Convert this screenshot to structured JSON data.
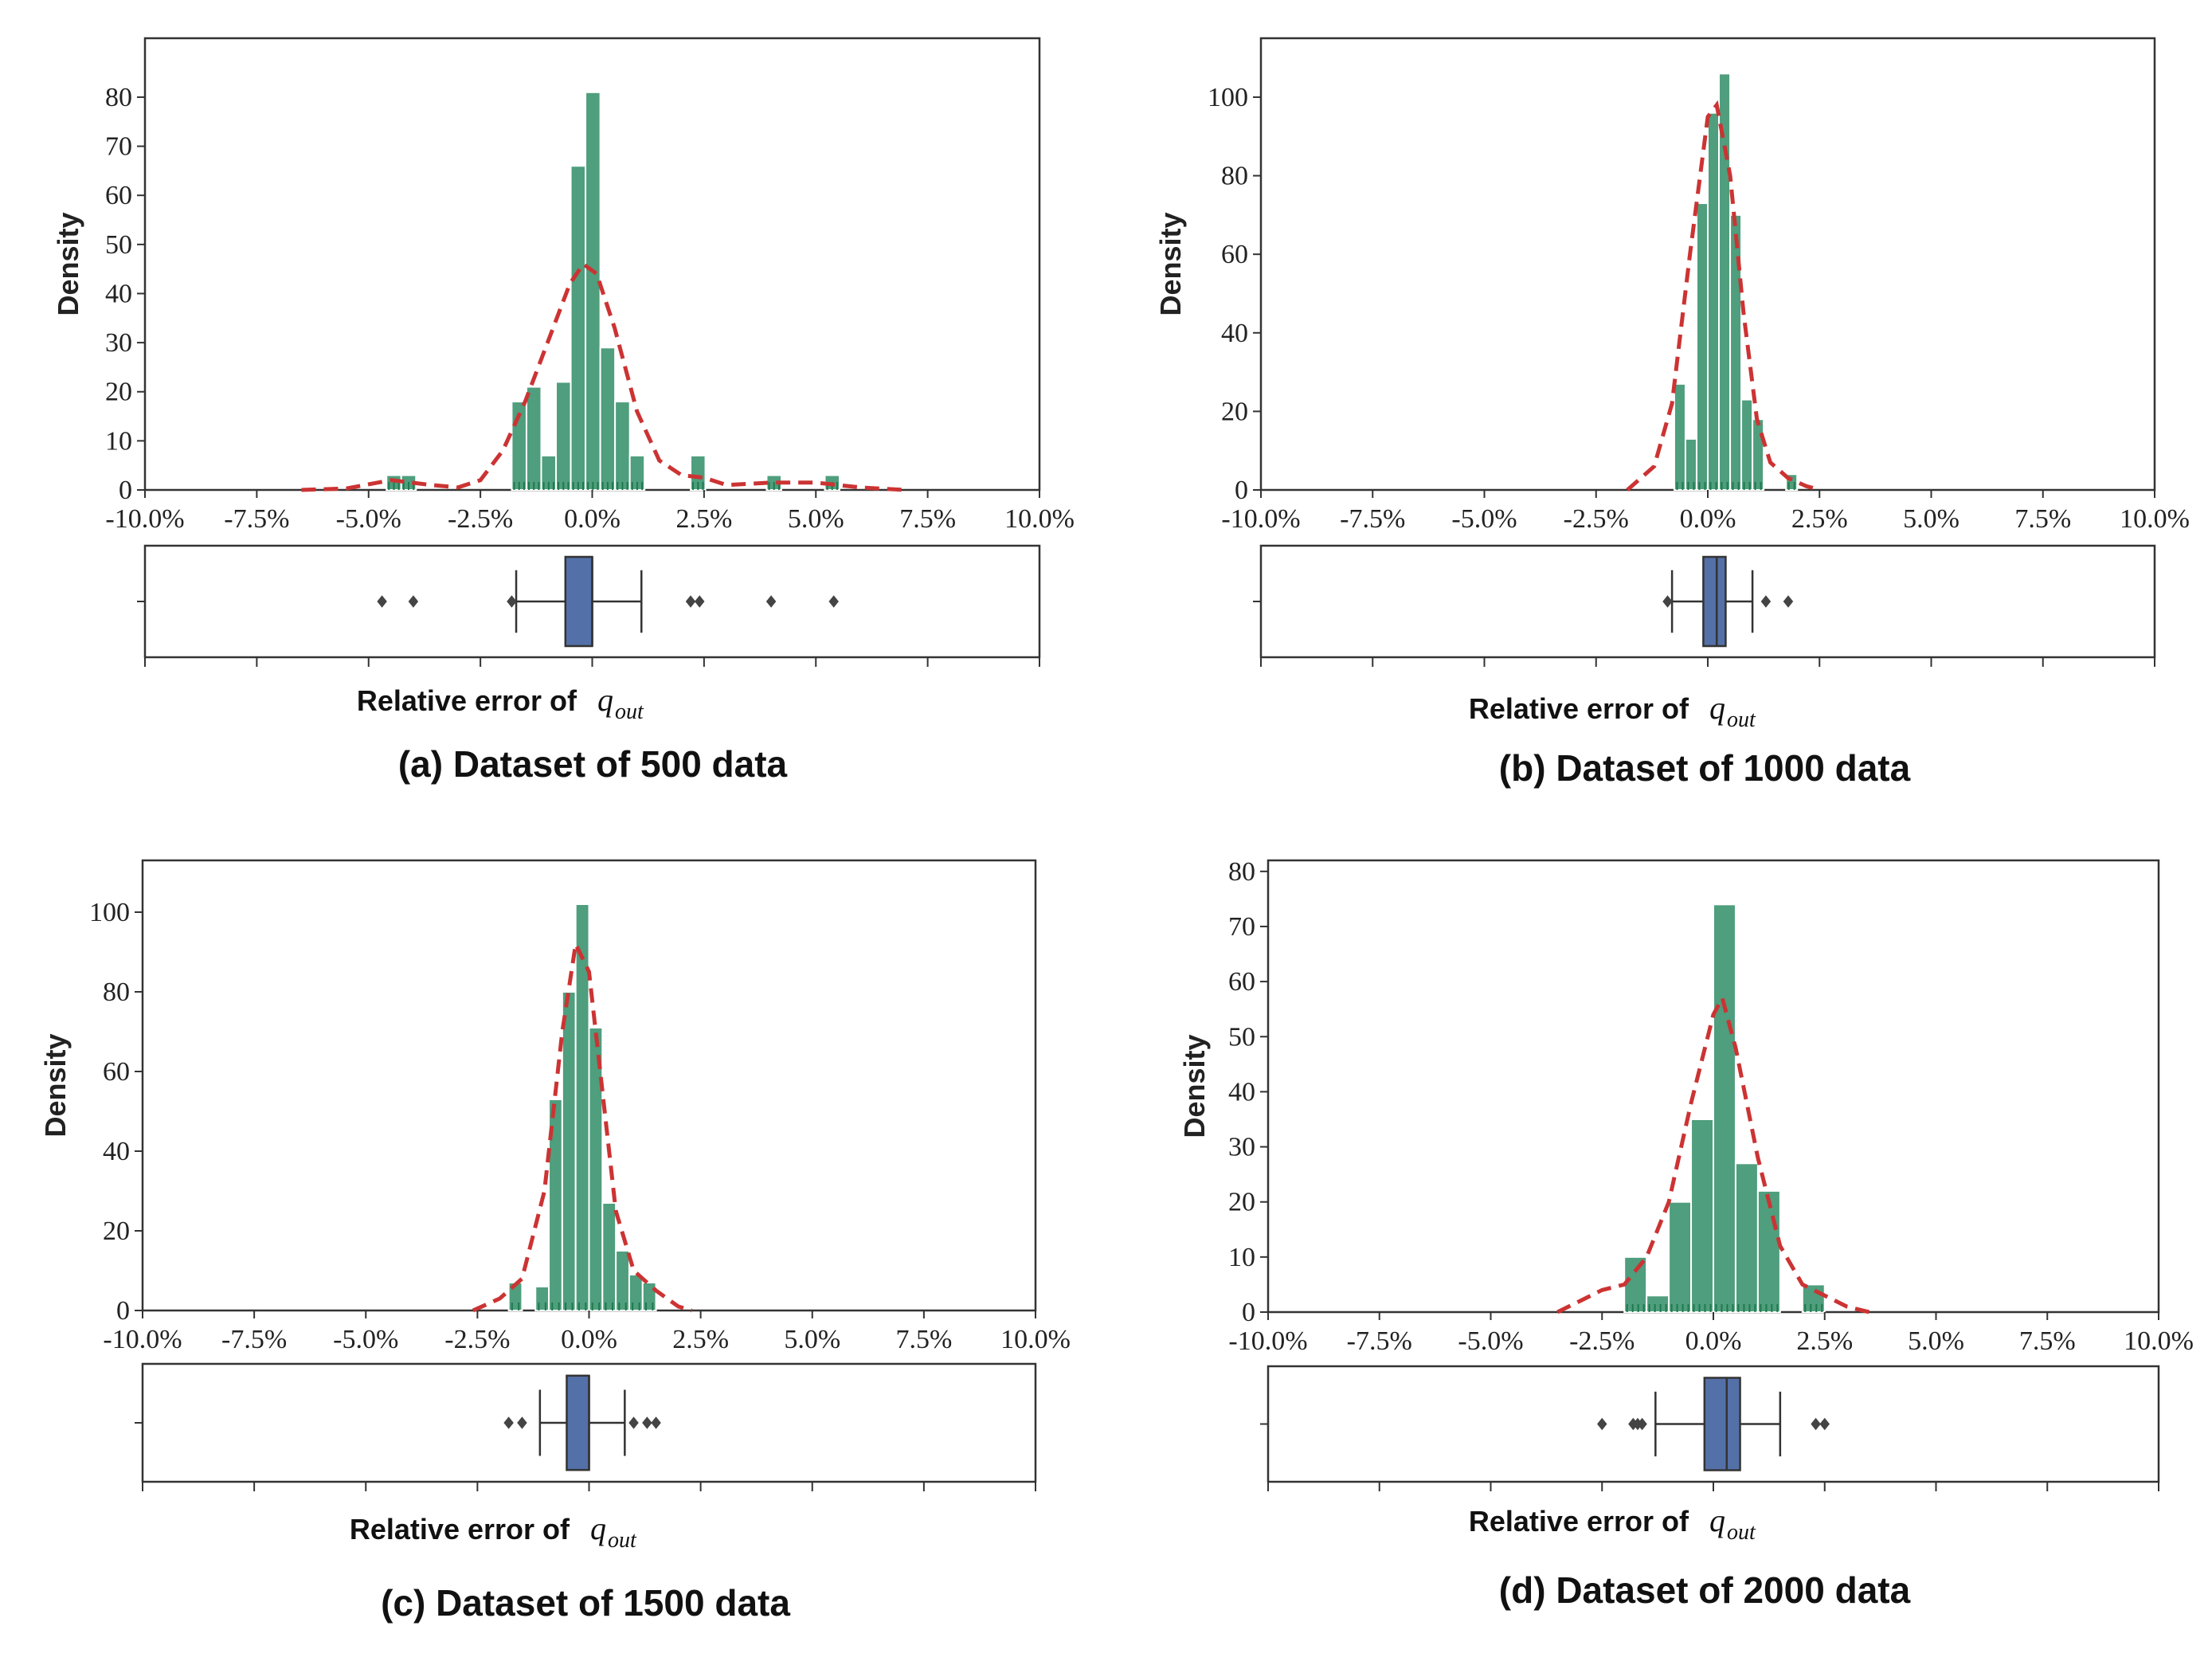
{
  "colors": {
    "bar_fill": "#4f9e7d",
    "bar_edge": "#ffffff",
    "rug": "#1f7a4d",
    "kde": "#cc3333",
    "box_fill": "#5470a8",
    "box_edge": "#333333",
    "axis": "#333333"
  },
  "x_tick_labels": [
    "-10.0%",
    "-7.5%",
    "-5.0%",
    "-2.5%",
    "0.0%",
    "2.5%",
    "5.0%",
    "7.5%",
    "10.0%"
  ],
  "chart_data": [
    {
      "type": "histogram",
      "id": "a",
      "caption": "(a) Dataset of 500 data",
      "ylabel": "Density",
      "xlabel": "Relative error of",
      "symbol": "q",
      "symbol_sub": "out",
      "xlim": [
        -10.0,
        10.0
      ],
      "ylim": [
        0,
        92
      ],
      "yticks": [
        0,
        10,
        20,
        30,
        40,
        50,
        60,
        70,
        80
      ],
      "bin_width": 0.33,
      "bars": [
        {
          "x": -4.6,
          "v": 3
        },
        {
          "x": -4.27,
          "v": 3
        },
        {
          "x": -1.8,
          "v": 18
        },
        {
          "x": -1.47,
          "v": 21
        },
        {
          "x": -1.14,
          "v": 7
        },
        {
          "x": -0.81,
          "v": 22
        },
        {
          "x": -0.48,
          "v": 66
        },
        {
          "x": -0.15,
          "v": 81
        },
        {
          "x": 0.18,
          "v": 29
        },
        {
          "x": 0.51,
          "v": 18
        },
        {
          "x": 0.84,
          "v": 7
        },
        {
          "x": 2.2,
          "v": 7
        },
        {
          "x": 3.9,
          "v": 3
        },
        {
          "x": 5.2,
          "v": 3
        }
      ],
      "kde": [
        [
          -6.5,
          0
        ],
        [
          -5.5,
          0.3
        ],
        [
          -4.5,
          2
        ],
        [
          -3.6,
          1
        ],
        [
          -3.0,
          0.5
        ],
        [
          -2.5,
          2
        ],
        [
          -2.0,
          8
        ],
        [
          -1.5,
          18
        ],
        [
          -1.0,
          30
        ],
        [
          -0.5,
          42
        ],
        [
          -0.2,
          46
        ],
        [
          0.1,
          44
        ],
        [
          0.5,
          33
        ],
        [
          1.0,
          16
        ],
        [
          1.5,
          6
        ],
        [
          2.0,
          3
        ],
        [
          2.5,
          2.5
        ],
        [
          3.0,
          1
        ],
        [
          4.0,
          1.5
        ],
        [
          5.0,
          1.5
        ],
        [
          6.0,
          0.5
        ],
        [
          7.0,
          0
        ]
      ],
      "box": {
        "q1": -0.6,
        "median": 0.0,
        "q3": 0.0,
        "whisker_low": -1.7,
        "whisker_high": 1.1,
        "outliers": [
          -4.7,
          -4.0,
          -1.8,
          2.2,
          2.4,
          4.0,
          5.4
        ]
      }
    },
    {
      "type": "histogram",
      "id": "b",
      "caption": "(b) Dataset of 1000 data",
      "ylabel": "Density",
      "xlabel": "Relative error of",
      "symbol": "q",
      "symbol_sub": "out",
      "xlim": [
        -10.0,
        10.0
      ],
      "ylim": [
        0,
        115
      ],
      "yticks": [
        0,
        20,
        40,
        60,
        80,
        100
      ],
      "bin_width": 0.25,
      "bars": [
        {
          "x": -0.75,
          "v": 27
        },
        {
          "x": -0.5,
          "v": 13
        },
        {
          "x": -0.25,
          "v": 73
        },
        {
          "x": 0.0,
          "v": 96
        },
        {
          "x": 0.25,
          "v": 106
        },
        {
          "x": 0.5,
          "v": 70
        },
        {
          "x": 0.75,
          "v": 23
        },
        {
          "x": 1.0,
          "v": 18
        },
        {
          "x": 1.75,
          "v": 4
        }
      ],
      "kde": [
        [
          -1.8,
          0
        ],
        [
          -1.2,
          6
        ],
        [
          -0.8,
          22
        ],
        [
          -0.4,
          60
        ],
        [
          0.0,
          95
        ],
        [
          0.2,
          98
        ],
        [
          0.5,
          80
        ],
        [
          0.8,
          45
        ],
        [
          1.1,
          18
        ],
        [
          1.4,
          7
        ],
        [
          1.8,
          3
        ],
        [
          2.2,
          1
        ],
        [
          2.5,
          0
        ]
      ],
      "box": {
        "q1": -0.1,
        "median": 0.2,
        "q3": 0.4,
        "whisker_low": -0.8,
        "whisker_high": 1.0,
        "outliers": [
          -0.9,
          1.3,
          1.8
        ]
      }
    },
    {
      "type": "histogram",
      "id": "c",
      "caption": "(c) Dataset of 1500 data",
      "ylabel": "Density",
      "xlabel": "Relative error of",
      "symbol": "q",
      "symbol_sub": "out",
      "xlim": [
        -10.0,
        10.0
      ],
      "ylim": [
        0,
        113
      ],
      "yticks": [
        0,
        20,
        40,
        60,
        80,
        100
      ],
      "bin_width": 0.3,
      "bars": [
        {
          "x": -1.8,
          "v": 7
        },
        {
          "x": -1.2,
          "v": 6
        },
        {
          "x": -0.9,
          "v": 53
        },
        {
          "x": -0.6,
          "v": 80
        },
        {
          "x": -0.3,
          "v": 102
        },
        {
          "x": 0.0,
          "v": 71
        },
        {
          "x": 0.3,
          "v": 27
        },
        {
          "x": 0.6,
          "v": 15
        },
        {
          "x": 0.9,
          "v": 9
        },
        {
          "x": 1.2,
          "v": 7
        }
      ],
      "kde": [
        [
          -2.6,
          0
        ],
        [
          -2.0,
          3
        ],
        [
          -1.5,
          8
        ],
        [
          -1.0,
          30
        ],
        [
          -0.6,
          70
        ],
        [
          -0.3,
          92
        ],
        [
          0.0,
          85
        ],
        [
          0.3,
          55
        ],
        [
          0.6,
          25
        ],
        [
          1.0,
          10
        ],
        [
          1.5,
          5
        ],
        [
          2.0,
          1
        ],
        [
          2.3,
          0
        ]
      ],
      "box": {
        "q1": -0.5,
        "median": 0.0,
        "q3": 0.0,
        "whisker_low": -1.1,
        "whisker_high": 0.8,
        "outliers": [
          -1.8,
          -1.5,
          1.0,
          1.3,
          1.5
        ]
      }
    },
    {
      "type": "histogram",
      "id": "d",
      "caption": "(d) Dataset of 2000 data",
      "ylabel": "Density",
      "xlabel": "Relative error of",
      "symbol": "q",
      "symbol_sub": "out",
      "xlim": [
        -10.0,
        10.0
      ],
      "ylim": [
        0,
        82
      ],
      "yticks": [
        0,
        10,
        20,
        30,
        40,
        50,
        60,
        70,
        80
      ],
      "bin_width": 0.5,
      "bars": [
        {
          "x": -2.0,
          "v": 10
        },
        {
          "x": -1.5,
          "v": 3
        },
        {
          "x": -1.0,
          "v": 20
        },
        {
          "x": -0.5,
          "v": 35
        },
        {
          "x": 0.0,
          "v": 74
        },
        {
          "x": 0.5,
          "v": 27
        },
        {
          "x": 1.0,
          "v": 22
        },
        {
          "x": 2.0,
          "v": 5
        }
      ],
      "kde": [
        [
          -3.5,
          0
        ],
        [
          -3.0,
          2
        ],
        [
          -2.5,
          4
        ],
        [
          -2.0,
          5
        ],
        [
          -1.5,
          10
        ],
        [
          -1.0,
          20
        ],
        [
          -0.5,
          38
        ],
        [
          0.0,
          54
        ],
        [
          0.2,
          57
        ],
        [
          0.5,
          48
        ],
        [
          1.0,
          28
        ],
        [
          1.5,
          12
        ],
        [
          2.0,
          5
        ],
        [
          2.5,
          3
        ],
        [
          3.0,
          1
        ],
        [
          3.5,
          0
        ]
      ],
      "box": {
        "q1": -0.2,
        "median": 0.3,
        "q3": 0.6,
        "whisker_low": -1.3,
        "whisker_high": 1.5,
        "outliers": [
          -2.5,
          -1.8,
          -1.7,
          -1.6,
          2.3,
          2.5
        ]
      }
    }
  ]
}
